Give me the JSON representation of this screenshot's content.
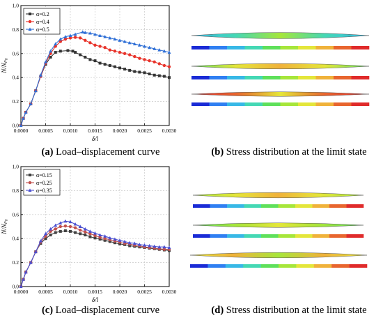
{
  "colors": {
    "series_a1": "#333333",
    "series_a2": "#e8332a",
    "series_a3": "#2f6fd6",
    "series_c1": "#404040",
    "series_c2": "#c0504d",
    "series_c3": "#4a4fd0",
    "legend_scale": [
      "#1a2bd6",
      "#2f7ff2",
      "#37b8e6",
      "#44d8b4",
      "#5ee05a",
      "#a6e63a",
      "#e4e63a",
      "#f0b23a",
      "#e8652e",
      "#e02a2a"
    ]
  },
  "captions": {
    "a": {
      "letter": "(a)",
      "text": " Load–displacement curve"
    },
    "b": {
      "letter": "(b)",
      "text": " Stress distribution at the limit state"
    },
    "c": {
      "letter": "(c)",
      "text": " Load–displacement curve"
    },
    "d": {
      "letter": "(d)",
      "text": " Stress distribution at the limit state"
    }
  },
  "chart_data": [
    {
      "type": "line",
      "xlabel": "δ/l",
      "ylabel": "N/Nₚ₀",
      "xlim": [
        0,
        0.003
      ],
      "ylim": [
        0,
        1.0
      ],
      "xticks": [
        "0.0000",
        "0.0005",
        "0.0010",
        "0.0015",
        "0.0020",
        "0.0025",
        "0.0030"
      ],
      "yticks": [
        "0.0",
        "0.2",
        "0.4",
        "0.6",
        "0.8",
        "1.0"
      ],
      "grid": true,
      "legend_position": "top-left",
      "series": [
        {
          "name": "α=0.2",
          "marker": "square",
          "color": "#333333",
          "points": [
            [
              0,
              0
            ],
            [
              5e-05,
              0.06
            ],
            [
              0.0001,
              0.11
            ],
            [
              0.0002,
              0.18
            ],
            [
              0.0003,
              0.29
            ],
            [
              0.0004,
              0.41
            ],
            [
              0.0005,
              0.51
            ],
            [
              0.0006,
              0.57
            ],
            [
              0.0007,
              0.61
            ],
            [
              0.0008,
              0.62
            ],
            [
              0.00095,
              0.625
            ],
            [
              0.00105,
              0.62
            ],
            [
              0.0011,
              0.61
            ],
            [
              0.0012,
              0.59
            ],
            [
              0.0013,
              0.57
            ],
            [
              0.0014,
              0.55
            ],
            [
              0.0015,
              0.54
            ],
            [
              0.0016,
              0.52
            ],
            [
              0.0017,
              0.51
            ],
            [
              0.0018,
              0.5
            ],
            [
              0.0019,
              0.49
            ],
            [
              0.002,
              0.48
            ],
            [
              0.0021,
              0.47
            ],
            [
              0.0022,
              0.46
            ],
            [
              0.0023,
              0.45
            ],
            [
              0.0024,
              0.445
            ],
            [
              0.0025,
              0.44
            ],
            [
              0.0026,
              0.43
            ],
            [
              0.0027,
              0.42
            ],
            [
              0.0028,
              0.415
            ],
            [
              0.0029,
              0.41
            ],
            [
              0.003,
              0.4
            ]
          ]
        },
        {
          "name": "α=0.4",
          "marker": "circle",
          "color": "#e8332a",
          "points": [
            [
              0,
              0
            ],
            [
              5e-05,
              0.06
            ],
            [
              0.0001,
              0.11
            ],
            [
              0.0002,
              0.18
            ],
            [
              0.0003,
              0.29
            ],
            [
              0.0004,
              0.41
            ],
            [
              0.0005,
              0.52
            ],
            [
              0.0006,
              0.6
            ],
            [
              0.0007,
              0.66
            ],
            [
              0.0008,
              0.7
            ],
            [
              0.0009,
              0.72
            ],
            [
              0.001,
              0.73
            ],
            [
              0.0011,
              0.735
            ],
            [
              0.0012,
              0.73
            ],
            [
              0.0013,
              0.71
            ],
            [
              0.0014,
              0.69
            ],
            [
              0.0015,
              0.67
            ],
            [
              0.0016,
              0.66
            ],
            [
              0.0017,
              0.65
            ],
            [
              0.0018,
              0.63
            ],
            [
              0.0019,
              0.62
            ],
            [
              0.002,
              0.61
            ],
            [
              0.0021,
              0.6
            ],
            [
              0.0022,
              0.59
            ],
            [
              0.0023,
              0.575
            ],
            [
              0.0024,
              0.56
            ],
            [
              0.0025,
              0.55
            ],
            [
              0.0026,
              0.54
            ],
            [
              0.0027,
              0.53
            ],
            [
              0.0028,
              0.515
            ],
            [
              0.0029,
              0.5
            ],
            [
              0.003,
              0.49
            ]
          ]
        },
        {
          "name": "α=0.5",
          "marker": "triangle",
          "color": "#2f6fd6",
          "points": [
            [
              0,
              0
            ],
            [
              5e-05,
              0.06
            ],
            [
              0.0001,
              0.11
            ],
            [
              0.0002,
              0.18
            ],
            [
              0.0003,
              0.29
            ],
            [
              0.0004,
              0.42
            ],
            [
              0.0005,
              0.53
            ],
            [
              0.0006,
              0.62
            ],
            [
              0.0007,
              0.68
            ],
            [
              0.0008,
              0.72
            ],
            [
              0.0009,
              0.74
            ],
            [
              0.001,
              0.75
            ],
            [
              0.0011,
              0.76
            ],
            [
              0.00125,
              0.78
            ],
            [
              0.0013,
              0.775
            ],
            [
              0.0014,
              0.77
            ],
            [
              0.0015,
              0.76
            ],
            [
              0.0016,
              0.75
            ],
            [
              0.0017,
              0.74
            ],
            [
              0.0018,
              0.73
            ],
            [
              0.0019,
              0.72
            ],
            [
              0.002,
              0.71
            ],
            [
              0.0021,
              0.7
            ],
            [
              0.0022,
              0.69
            ],
            [
              0.0023,
              0.68
            ],
            [
              0.0024,
              0.67
            ],
            [
              0.0025,
              0.66
            ],
            [
              0.0026,
              0.65
            ],
            [
              0.0027,
              0.64
            ],
            [
              0.0028,
              0.63
            ],
            [
              0.0029,
              0.62
            ],
            [
              0.003,
              0.61
            ]
          ]
        }
      ]
    },
    {
      "type": "line",
      "xlabel": "δ/l",
      "ylabel": "N/Nₚ₀",
      "xlim": [
        0,
        0.003
      ],
      "ylim": [
        0,
        1.0
      ],
      "xticks": [
        "0.0000",
        "0.0005",
        "0.0010",
        "0.0015",
        "0.0020",
        "0.0025",
        "0.0030"
      ],
      "yticks": [
        "0.0",
        "0.2",
        "0.4",
        "0.6",
        "0.8",
        "1.0"
      ],
      "grid": true,
      "legend_position": "top-left",
      "series": [
        {
          "name": "α=0.15",
          "marker": "square",
          "color": "#404040",
          "points": [
            [
              0,
              0
            ],
            [
              5e-05,
              0.06
            ],
            [
              0.0001,
              0.12
            ],
            [
              0.0002,
              0.2
            ],
            [
              0.0003,
              0.29
            ],
            [
              0.0004,
              0.36
            ],
            [
              0.0005,
              0.4
            ],
            [
              0.0006,
              0.43
            ],
            [
              0.0007,
              0.45
            ],
            [
              0.0008,
              0.46
            ],
            [
              0.0009,
              0.465
            ],
            [
              0.001,
              0.46
            ],
            [
              0.0011,
              0.45
            ],
            [
              0.0012,
              0.44
            ],
            [
              0.0013,
              0.43
            ],
            [
              0.0014,
              0.415
            ],
            [
              0.0015,
              0.405
            ],
            [
              0.0016,
              0.395
            ],
            [
              0.0017,
              0.385
            ],
            [
              0.0018,
              0.375
            ],
            [
              0.0019,
              0.365
            ],
            [
              0.002,
              0.355
            ],
            [
              0.0021,
              0.35
            ],
            [
              0.0022,
              0.34
            ],
            [
              0.0023,
              0.335
            ],
            [
              0.0024,
              0.33
            ],
            [
              0.0025,
              0.325
            ],
            [
              0.0026,
              0.32
            ],
            [
              0.0027,
              0.315
            ],
            [
              0.0028,
              0.31
            ],
            [
              0.0029,
              0.305
            ],
            [
              0.003,
              0.3
            ]
          ]
        },
        {
          "name": "α=0.25",
          "marker": "circle",
          "color": "#c0504d",
          "points": [
            [
              0,
              0
            ],
            [
              5e-05,
              0.06
            ],
            [
              0.0001,
              0.12
            ],
            [
              0.0002,
              0.2
            ],
            [
              0.0003,
              0.29
            ],
            [
              0.0004,
              0.37
            ],
            [
              0.0005,
              0.42
            ],
            [
              0.0006,
              0.46
            ],
            [
              0.0007,
              0.48
            ],
            [
              0.0008,
              0.5
            ],
            [
              0.0009,
              0.505
            ],
            [
              0.001,
              0.5
            ],
            [
              0.0011,
              0.49
            ],
            [
              0.0012,
              0.47
            ],
            [
              0.0013,
              0.455
            ],
            [
              0.0014,
              0.44
            ],
            [
              0.0015,
              0.425
            ],
            [
              0.0016,
              0.41
            ],
            [
              0.0017,
              0.4
            ],
            [
              0.0018,
              0.39
            ],
            [
              0.0019,
              0.38
            ],
            [
              0.002,
              0.37
            ],
            [
              0.0021,
              0.36
            ],
            [
              0.0022,
              0.355
            ],
            [
              0.0023,
              0.345
            ],
            [
              0.0024,
              0.34
            ],
            [
              0.0025,
              0.33
            ],
            [
              0.0026,
              0.325
            ],
            [
              0.0027,
              0.32
            ],
            [
              0.0028,
              0.315
            ],
            [
              0.0029,
              0.31
            ],
            [
              0.003,
              0.31
            ]
          ]
        },
        {
          "name": "α=0.35",
          "marker": "triangle",
          "color": "#4a4fd0",
          "points": [
            [
              0,
              0
            ],
            [
              5e-05,
              0.06
            ],
            [
              0.0001,
              0.12
            ],
            [
              0.0002,
              0.2
            ],
            [
              0.0003,
              0.29
            ],
            [
              0.0004,
              0.38
            ],
            [
              0.0005,
              0.44
            ],
            [
              0.0006,
              0.48
            ],
            [
              0.0007,
              0.51
            ],
            [
              0.0008,
              0.53
            ],
            [
              0.0009,
              0.545
            ],
            [
              0.001,
              0.54
            ],
            [
              0.0011,
              0.52
            ],
            [
              0.0012,
              0.5
            ],
            [
              0.0013,
              0.48
            ],
            [
              0.0014,
              0.46
            ],
            [
              0.0015,
              0.445
            ],
            [
              0.0016,
              0.43
            ],
            [
              0.0017,
              0.42
            ],
            [
              0.0018,
              0.405
            ],
            [
              0.0019,
              0.395
            ],
            [
              0.002,
              0.385
            ],
            [
              0.0021,
              0.375
            ],
            [
              0.0022,
              0.365
            ],
            [
              0.0023,
              0.36
            ],
            [
              0.0024,
              0.35
            ],
            [
              0.0025,
              0.345
            ],
            [
              0.0026,
              0.34
            ],
            [
              0.0027,
              0.335
            ],
            [
              0.0028,
              0.33
            ],
            [
              0.0029,
              0.33
            ],
            [
              0.003,
              0.325
            ]
          ]
        }
      ]
    }
  ]
}
